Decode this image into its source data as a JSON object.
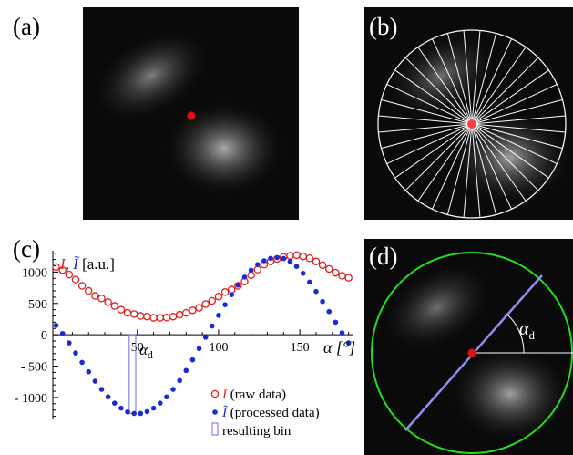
{
  "panel_labels": {
    "a": "(a)",
    "b": "(b)",
    "c": "(c)",
    "d": "(d)"
  },
  "chart_data": {
    "type": "scatter",
    "xlabel": "α [°]",
    "ylabel_raw": "I",
    "ylabel_processed": "Ĩ",
    "ylabel_unit": "[a.u.]",
    "xlim": [
      -2,
      183
    ],
    "ylim": [
      -1350,
      1340
    ],
    "xticks": [
      50,
      100,
      150
    ],
    "yticks": [
      {
        "value": 1000,
        "label": "1000"
      },
      {
        "value": 500,
        "label": "500"
      },
      {
        "value": 0,
        "label": "0"
      },
      {
        "value": -500,
        "label": "- 500"
      },
      {
        "value": -1000,
        "label": "- 1000"
      }
    ],
    "annotation": "α",
    "annotation_sub": "d",
    "resulting_bin": {
      "x_from": 45,
      "x_to": 49
    },
    "series": [
      {
        "name": "I",
        "desc": "(raw data)",
        "marker": "open-circle",
        "color": "#e02020",
        "x": [
          0,
          4,
          8,
          12,
          16,
          20,
          24,
          28,
          32,
          36,
          40,
          44,
          48,
          52,
          56,
          60,
          64,
          68,
          72,
          76,
          80,
          84,
          88,
          92,
          96,
          100,
          104,
          108,
          112,
          116,
          120,
          124,
          128,
          132,
          136,
          140,
          144,
          148,
          152,
          156,
          160,
          164,
          168,
          172,
          176,
          180
        ],
        "y": [
          1080,
          1030,
          960,
          880,
          780,
          700,
          620,
          580,
          520,
          460,
          400,
          350,
          330,
          300,
          290,
          270,
          270,
          275,
          290,
          320,
          350,
          390,
          430,
          490,
          540,
          610,
          680,
          720,
          780,
          850,
          950,
          1040,
          1120,
          1170,
          1210,
          1240,
          1260,
          1270,
          1250,
          1220,
          1170,
          1110,
          1050,
          990,
          940,
          910
        ]
      },
      {
        "name": "Ĩ",
        "desc": "(processed data)",
        "marker": "filled-dot",
        "color": "#1a2bd6",
        "x": [
          0,
          4,
          8,
          12,
          16,
          20,
          24,
          28,
          32,
          36,
          40,
          44,
          48,
          52,
          56,
          60,
          64,
          68,
          72,
          76,
          80,
          84,
          88,
          92,
          96,
          100,
          104,
          108,
          112,
          116,
          120,
          124,
          128,
          132,
          136,
          140,
          144,
          148,
          152,
          156,
          160,
          164,
          168,
          172,
          176,
          180
        ],
        "y": [
          150,
          20,
          -130,
          -290,
          -440,
          -590,
          -740,
          -870,
          -990,
          -1090,
          -1170,
          -1230,
          -1255,
          -1255,
          -1225,
          -1170,
          -1090,
          -990,
          -870,
          -730,
          -570,
          -400,
          -220,
          -40,
          140,
          310,
          480,
          640,
          790,
          920,
          1030,
          1120,
          1180,
          1220,
          1230,
          1215,
          1170,
          1090,
          980,
          840,
          690,
          530,
          370,
          200,
          30,
          -130
        ]
      }
    ],
    "legend": {
      "position": "bottom-right",
      "bin_label": "resulting bin"
    }
  },
  "panel_d": {
    "angle_label": "α",
    "angle_sub": "d"
  }
}
